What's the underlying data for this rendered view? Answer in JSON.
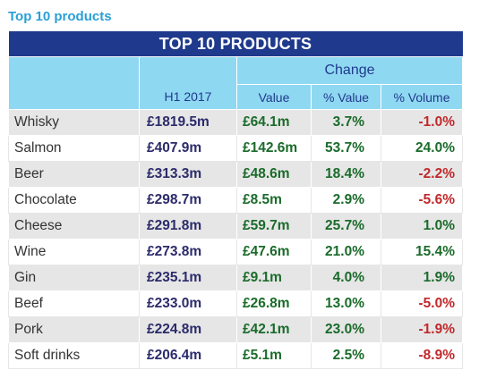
{
  "page_heading": "Top 10 products",
  "table": {
    "title": "TOP 10 PRODUCTS",
    "change_label": "Change",
    "columns": {
      "h1": "H1 2017",
      "value": "Value",
      "pct_value": "% Value",
      "pct_volume": "% Volume"
    },
    "rows": [
      {
        "name": "Whisky",
        "h1": "£1819.5m",
        "value": "£64.1m",
        "pct_value": "3.7%",
        "pct_volume": "-1.0%"
      },
      {
        "name": "Salmon",
        "h1": "£407.9m",
        "value": "£142.6m",
        "pct_value": "53.7%",
        "pct_volume": "24.0%"
      },
      {
        "name": "Beer",
        "h1": "£313.3m",
        "value": "£48.6m",
        "pct_value": "18.4%",
        "pct_volume": "-2.2%"
      },
      {
        "name": "Chocolate",
        "h1": "£298.7m",
        "value": "£8.5m",
        "pct_value": "2.9%",
        "pct_volume": "-5.6%"
      },
      {
        "name": "Cheese",
        "h1": "£291.8m",
        "value": "£59.7m",
        "pct_value": "25.7%",
        "pct_volume": "1.0%"
      },
      {
        "name": "Wine",
        "h1": "£273.8m",
        "value": "£47.6m",
        "pct_value": "21.0%",
        "pct_volume": "15.4%"
      },
      {
        "name": "Gin",
        "h1": "£235.1m",
        "value": "£9.1m",
        "pct_value": "4.0%",
        "pct_volume": "1.9%"
      },
      {
        "name": "Beef",
        "h1": "£233.0m",
        "value": "£26.8m",
        "pct_value": "13.0%",
        "pct_volume": "-5.0%"
      },
      {
        "name": "Pork",
        "h1": "£224.8m",
        "value": "£42.1m",
        "pct_value": "23.0%",
        "pct_volume": "-1.9%"
      },
      {
        "name": "Soft drinks",
        "h1": "£206.4m",
        "value": "£5.1m",
        "pct_value": "2.5%",
        "pct_volume": "-8.9%"
      }
    ]
  },
  "colors": {
    "title_bg": "#1f3a8c",
    "header_bg": "#8fd8f2",
    "positive": "#1a6b2a",
    "negative": "#c0292b",
    "heading": "#2a9fd6"
  }
}
